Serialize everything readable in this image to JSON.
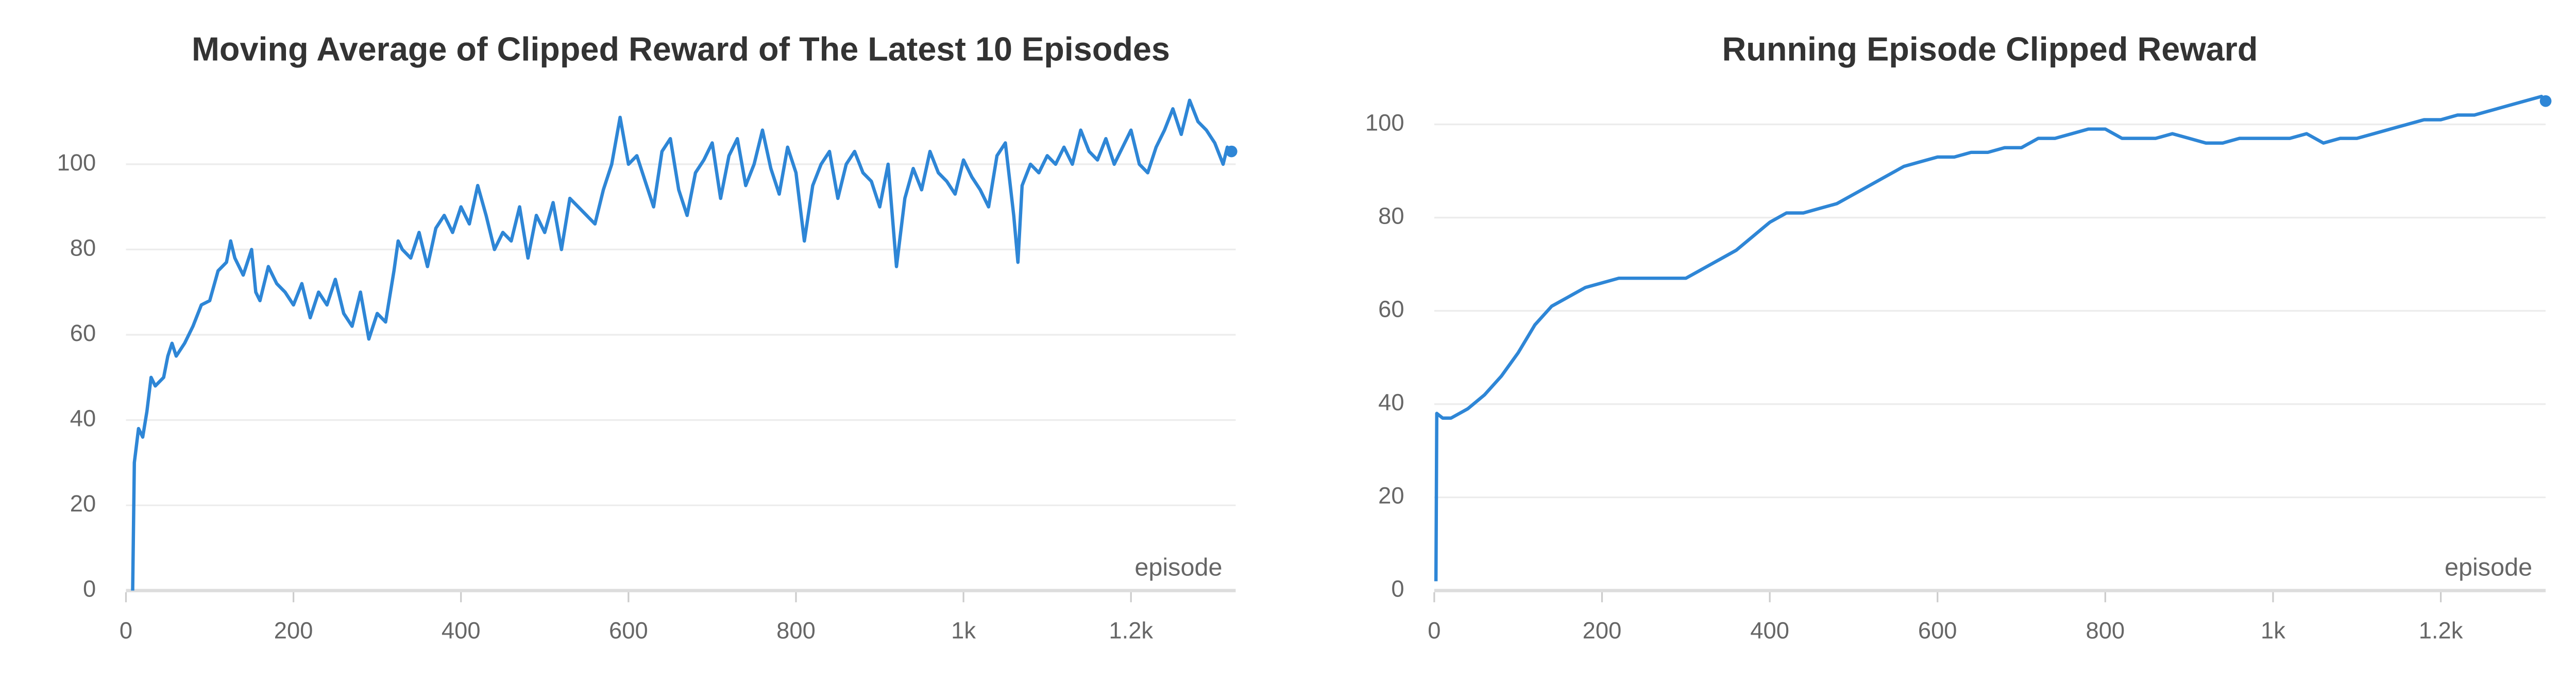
{
  "chart_data": [
    {
      "type": "line",
      "title": "Moving Average of Clipped Reward of The Latest 10 Episodes",
      "x_label": "episode",
      "color": "#2e86d6",
      "grid": true,
      "x": [
        8,
        10,
        15,
        20,
        25,
        30,
        35,
        45,
        50,
        55,
        60,
        70,
        80,
        90,
        100,
        110,
        120,
        125,
        130,
        140,
        150,
        155,
        160,
        170,
        180,
        190,
        200,
        210,
        220,
        230,
        240,
        250,
        260,
        270,
        280,
        290,
        300,
        310,
        320,
        325,
        330,
        340,
        350,
        360,
        370,
        380,
        390,
        400,
        410,
        420,
        430,
        440,
        450,
        460,
        470,
        480,
        490,
        500,
        510,
        520,
        530,
        540,
        550,
        560,
        570,
        580,
        590,
        600,
        610,
        620,
        630,
        640,
        650,
        660,
        670,
        680,
        690,
        700,
        710,
        720,
        730,
        740,
        750,
        760,
        770,
        780,
        790,
        800,
        810,
        820,
        830,
        840,
        850,
        860,
        870,
        880,
        890,
        900,
        910,
        920,
        930,
        940,
        950,
        960,
        970,
        980,
        990,
        1000,
        1010,
        1020,
        1030,
        1040,
        1050,
        1060,
        1065,
        1070,
        1080,
        1090,
        1100,
        1110,
        1120,
        1130,
        1140,
        1150,
        1160,
        1170,
        1180,
        1190,
        1200,
        1210,
        1220,
        1230,
        1240,
        1250,
        1260,
        1270,
        1280,
        1290,
        1300,
        1310,
        1315,
        1320
      ],
      "values": [
        0,
        30,
        38,
        36,
        42,
        50,
        48,
        50,
        55,
        58,
        55,
        58,
        62,
        67,
        68,
        75,
        77,
        82,
        78,
        74,
        80,
        70,
        68,
        76,
        72,
        70,
        67,
        72,
        64,
        70,
        67,
        73,
        65,
        62,
        70,
        59,
        65,
        63,
        75,
        82,
        80,
        78,
        84,
        76,
        85,
        88,
        84,
        90,
        86,
        95,
        88,
        80,
        84,
        82,
        90,
        78,
        88,
        84,
        91,
        80,
        92,
        90,
        88,
        86,
        94,
        100,
        111,
        100,
        102,
        96,
        90,
        103,
        106,
        94,
        88,
        98,
        101,
        105,
        92,
        102,
        106,
        95,
        100,
        108,
        99,
        93,
        104,
        98,
        82,
        95,
        100,
        103,
        92,
        100,
        103,
        98,
        96,
        90,
        100,
        76,
        92,
        99,
        94,
        103,
        98,
        96,
        93,
        101,
        97,
        94,
        90,
        102,
        105,
        88,
        77,
        95,
        100,
        98,
        102,
        100,
        104,
        100,
        108,
        103,
        101,
        106,
        100,
        104,
        108,
        100,
        98,
        104,
        108,
        113,
        107,
        115,
        110,
        108,
        105,
        100,
        104,
        103
      ],
      "xlim": [
        0,
        1325
      ],
      "ylim": [
        0,
        117
      ],
      "xticks": [
        0,
        200,
        400,
        600,
        800,
        {
          "value": 1000,
          "label": "1k"
        },
        {
          "value": 1200,
          "label": "1.2k"
        }
      ],
      "yticks": [
        0,
        20,
        40,
        60,
        80,
        100
      ]
    },
    {
      "type": "line",
      "title": "Running Episode Clipped Reward",
      "x_label": "episode",
      "color": "#2e86d6",
      "grid": true,
      "x": [
        2,
        3,
        10,
        20,
        30,
        40,
        60,
        80,
        100,
        120,
        140,
        160,
        180,
        200,
        220,
        240,
        260,
        280,
        300,
        320,
        340,
        360,
        380,
        400,
        420,
        440,
        460,
        480,
        500,
        520,
        540,
        560,
        580,
        600,
        620,
        640,
        660,
        680,
        700,
        720,
        740,
        760,
        780,
        800,
        820,
        840,
        860,
        880,
        900,
        920,
        940,
        960,
        980,
        1000,
        1020,
        1040,
        1060,
        1080,
        1100,
        1120,
        1140,
        1160,
        1180,
        1200,
        1220,
        1240,
        1260,
        1280,
        1300,
        1320,
        1325
      ],
      "values": [
        2,
        38,
        37,
        37,
        38,
        39,
        42,
        46,
        51,
        57,
        61,
        63,
        65,
        66,
        67,
        67,
        67,
        67,
        67,
        69,
        71,
        73,
        76,
        79,
        81,
        81,
        82,
        83,
        85,
        87,
        89,
        91,
        92,
        93,
        93,
        94,
        94,
        95,
        95,
        97,
        97,
        98,
        99,
        99,
        97,
        97,
        97,
        98,
        97,
        96,
        96,
        97,
        97,
        97,
        97,
        98,
        96,
        97,
        97,
        98,
        99,
        100,
        101,
        101,
        102,
        102,
        103,
        104,
        105,
        106,
        105
      ],
      "xlim": [
        0,
        1325
      ],
      "ylim": [
        0,
        107
      ],
      "xticks": [
        0,
        200,
        400,
        600,
        800,
        {
          "value": 1000,
          "label": "1k"
        },
        {
          "value": 1200,
          "label": "1.2k"
        }
      ],
      "yticks": [
        0,
        20,
        40,
        60,
        80,
        100
      ]
    }
  ]
}
